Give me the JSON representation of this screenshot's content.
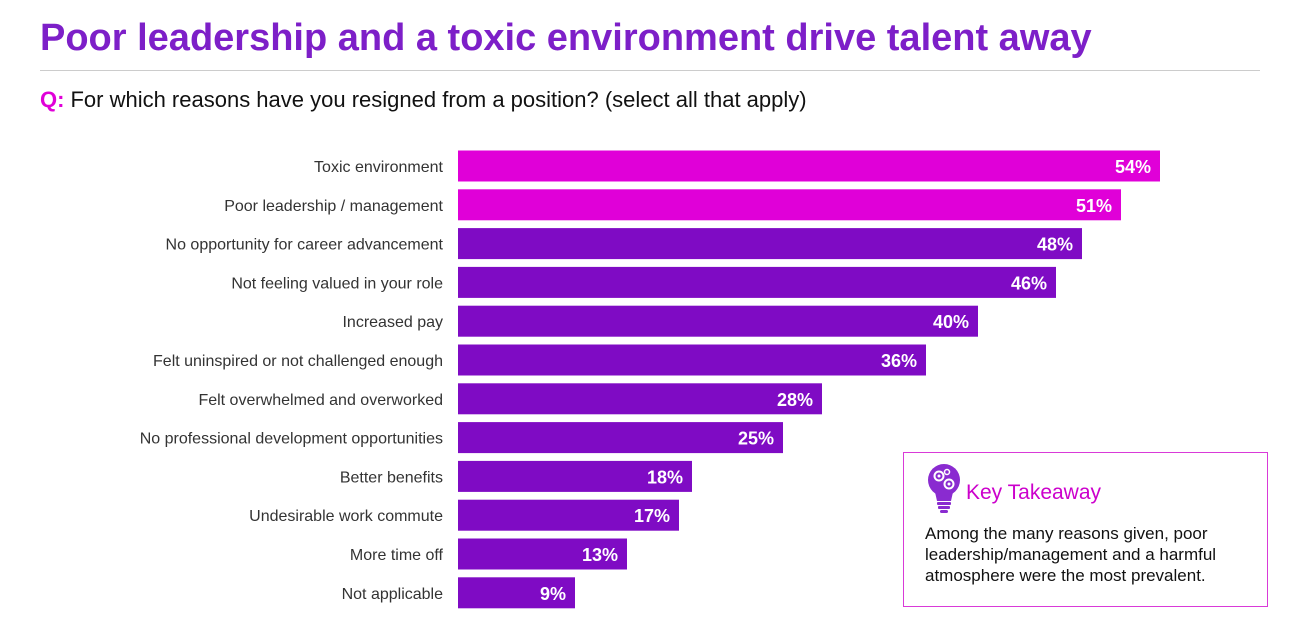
{
  "header": {
    "title": "Poor leadership and a toxic environment drive talent away",
    "question_prefix": "Q:",
    "question_text": "For which reasons have you resigned from a position? (select all that apply)"
  },
  "colors": {
    "title": "#7d1fc8",
    "highlight_bar": "#e000d8",
    "standard_bar": "#7f0bc4",
    "accent": "#cc00cc"
  },
  "chart_data": {
    "type": "bar",
    "orientation": "horizontal",
    "categories": [
      "Toxic environment",
      "Poor leadership / management",
      "No opportunity for career advancement",
      "Not feeling valued in your role",
      "Increased pay",
      "Felt uninspired or not challenged enough",
      "Felt overwhelmed and overworked",
      "No professional development opportunities",
      "Better benefits",
      "Undesirable work commute",
      "More time off",
      "Not applicable"
    ],
    "values": [
      54,
      51,
      48,
      46,
      40,
      36,
      28,
      25,
      18,
      17,
      13,
      9
    ],
    "value_labels": [
      "54%",
      "51%",
      "48%",
      "46%",
      "40%",
      "36%",
      "28%",
      "25%",
      "18%",
      "17%",
      "13%",
      "9%"
    ],
    "highlighted": [
      true,
      true,
      false,
      false,
      false,
      false,
      false,
      false,
      false,
      false,
      false,
      false
    ],
    "unit": "%",
    "xlim": [
      0,
      54
    ],
    "grid": false,
    "title": "",
    "xlabel": "",
    "ylabel": ""
  },
  "takeaway": {
    "icon": "lightbulb-gears-icon",
    "heading": "Key Takeaway",
    "body": "Among the many reasons given, poor leadership/management and a harmful atmosphere were the most prevalent."
  }
}
